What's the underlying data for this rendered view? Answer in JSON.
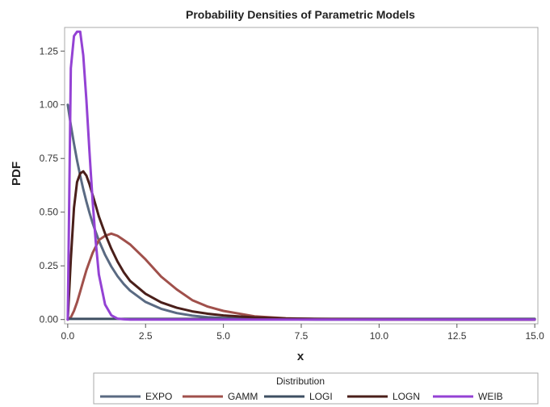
{
  "chart_data": {
    "type": "line",
    "title": "Probability Densities of Parametric Models",
    "xlabel": "x",
    "ylabel": "PDF",
    "xlim": [
      -0.1,
      15.1
    ],
    "ylim": [
      -0.02,
      1.36
    ],
    "xticks": [
      0,
      2.5,
      5,
      7.5,
      10,
      12.5,
      15
    ],
    "xtick_labels": [
      "0.0",
      "2.5",
      "5.0",
      "7.5",
      "10.0",
      "12.5",
      "15.0"
    ],
    "yticks": [
      0,
      0.25,
      0.5,
      0.75,
      1.0,
      1.25
    ],
    "ytick_labels": [
      "0.00",
      "0.25",
      "0.50",
      "0.75",
      "1.00",
      "1.25"
    ],
    "grid": false,
    "legend": {
      "title": "Distribution",
      "position": "bottom"
    },
    "x": [
      0,
      0.1,
      0.2,
      0.3,
      0.4,
      0.5,
      0.6,
      0.7,
      0.8,
      0.9,
      1.0,
      1.2,
      1.4,
      1.6,
      1.8,
      2.0,
      2.5,
      3.0,
      3.5,
      4.0,
      4.5,
      5.0,
      6.0,
      7.0,
      8.0,
      10.0,
      12.5,
      15.0
    ],
    "series": [
      {
        "name": "EXPO",
        "color": "#5a6a82",
        "values": [
          1.0,
          0.905,
          0.819,
          0.741,
          0.67,
          0.607,
          0.549,
          0.497,
          0.449,
          0.407,
          0.368,
          0.301,
          0.247,
          0.202,
          0.165,
          0.135,
          0.082,
          0.05,
          0.03,
          0.018,
          0.011,
          0.007,
          0.002,
          0.001,
          0.0,
          0.0,
          0.0,
          0.0
        ]
      },
      {
        "name": "GAMM",
        "color": "#a0504b",
        "values": [
          0,
          0.01,
          0.04,
          0.08,
          0.13,
          0.18,
          0.23,
          0.27,
          0.31,
          0.34,
          0.37,
          0.39,
          0.4,
          0.39,
          0.37,
          0.35,
          0.28,
          0.2,
          0.14,
          0.09,
          0.06,
          0.04,
          0.015,
          0.006,
          0.002,
          0.0,
          0.0,
          0.0
        ]
      },
      {
        "name": "LOGI",
        "color": "#3e4f62",
        "values": [
          0.003,
          0.003,
          0.003,
          0.003,
          0.003,
          0.003,
          0.003,
          0.003,
          0.003,
          0.003,
          0.003,
          0.003,
          0.003,
          0.003,
          0.003,
          0.003,
          0.003,
          0.003,
          0.003,
          0.003,
          0.003,
          0.003,
          0.003,
          0.003,
          0.003,
          0.003,
          0.003,
          0.003
        ]
      },
      {
        "name": "LOGN",
        "color": "#4a1f1a",
        "values": [
          0,
          0.28,
          0.52,
          0.64,
          0.68,
          0.69,
          0.67,
          0.63,
          0.58,
          0.53,
          0.48,
          0.4,
          0.33,
          0.27,
          0.22,
          0.18,
          0.12,
          0.08,
          0.055,
          0.038,
          0.027,
          0.019,
          0.01,
          0.005,
          0.003,
          0.001,
          0.0,
          0.0
        ]
      },
      {
        "name": "WEIB",
        "color": "#9442d4",
        "values": [
          0,
          1.17,
          1.32,
          1.34,
          1.34,
          1.23,
          1.02,
          0.78,
          0.55,
          0.36,
          0.21,
          0.07,
          0.02,
          0.004,
          0.001,
          0.0,
          0.0,
          0.0,
          0.0,
          0.0,
          0.0,
          0.0,
          0.0,
          0.0,
          0.0,
          0.0,
          0.0,
          0.0
        ]
      }
    ]
  }
}
